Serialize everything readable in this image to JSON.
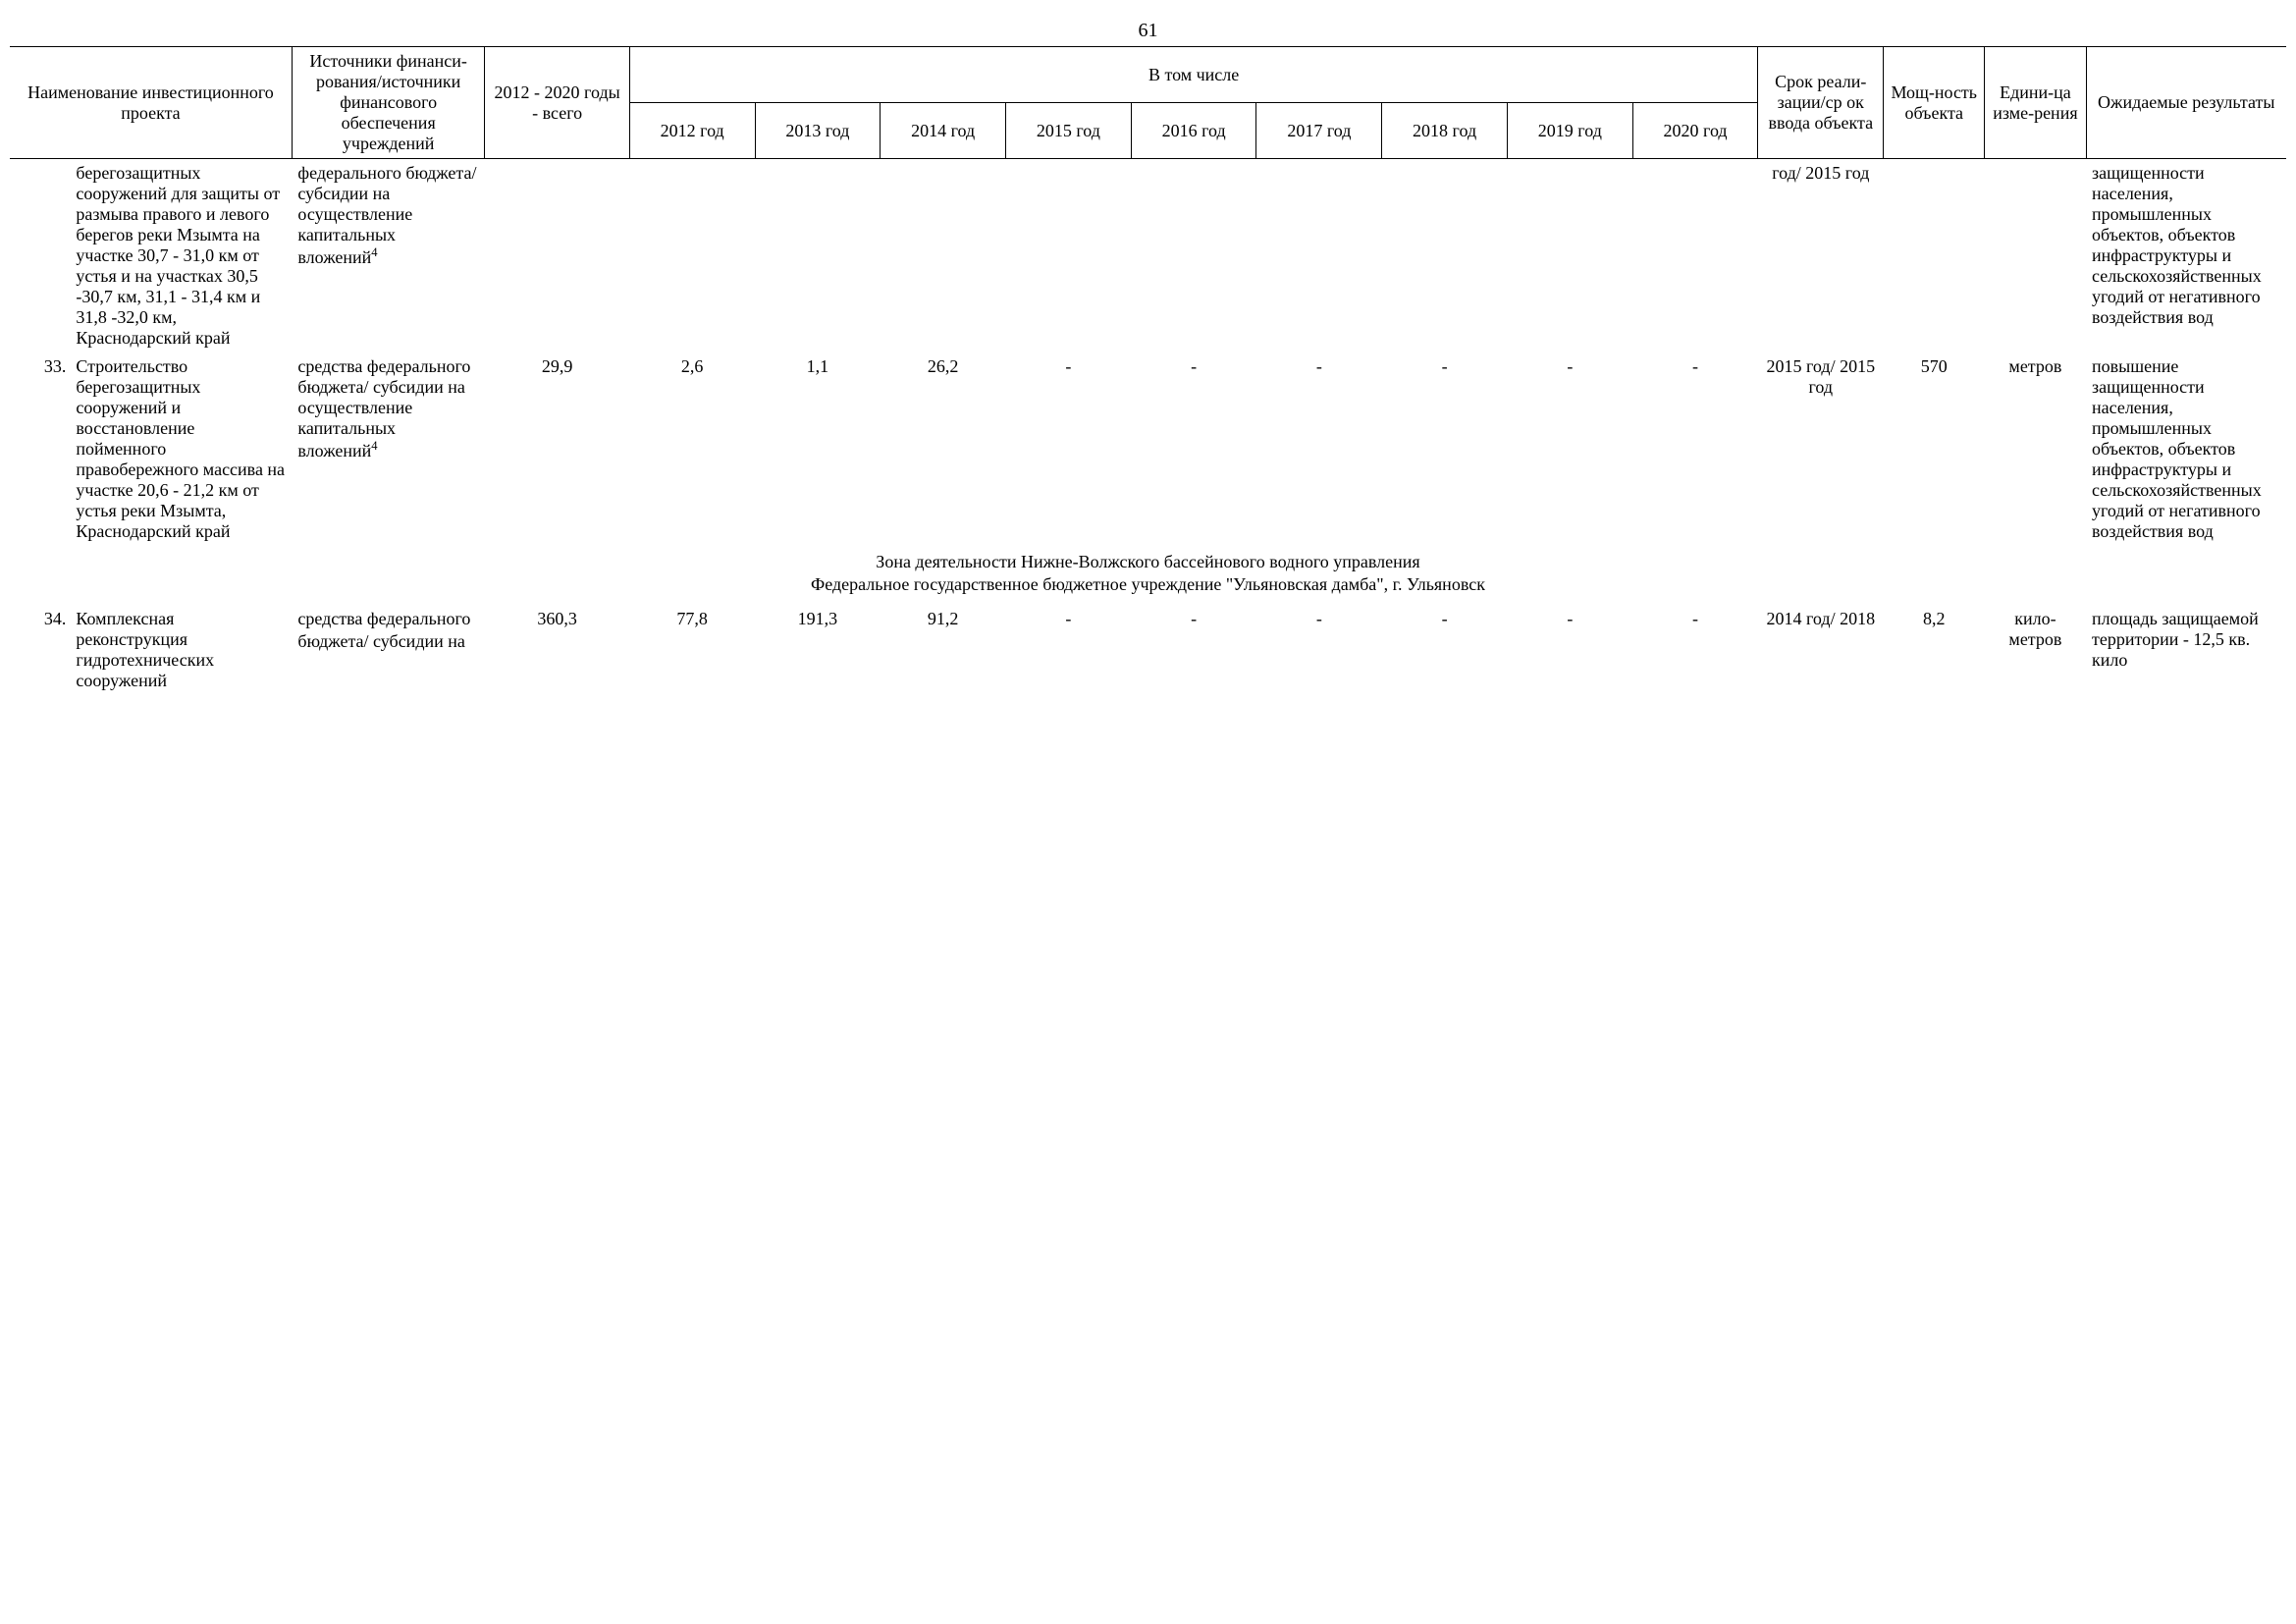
{
  "page_number": "61",
  "header": {
    "name": "Наименование инвестиционного проекта",
    "sources": "Источники финанси-рования/источники финансового обеспечения учреждений",
    "total": "2012 - 2020 годы - всего",
    "including": "В том числе",
    "y2012": "2012 год",
    "y2013": "2013 год",
    "y2014": "2014 год",
    "y2015": "2015 год",
    "y2016": "2016 год",
    "y2017": "2017 год",
    "y2018": "2018 год",
    "y2019": "2019 год",
    "y2020": "2020 год",
    "srok": "Срок реали-зации/ср ок ввода объекта",
    "mosh": "Мощ-ность объекта",
    "unit": "Едини-ца изме-рения",
    "result": "Ожидаемые результаты"
  },
  "rows": {
    "r0": {
      "idx": "",
      "name": "берегозащитных сооружений для защиты от размыва правого и левого берегов реки Мзымта на участке 30,7 - 31,0 км от устья и на участках 30,5 -30,7 км, 31,1 - 31,4 км и 31,8 -32,0 км, Краснодарский край",
      "src_pre": "федерального бюджета/ субсидии на осуществление капитальных вложений",
      "src_sup": "4",
      "total": "",
      "v2012": "",
      "v2013": "",
      "v2014": "",
      "v2015": "",
      "v2016": "",
      "v2017": "",
      "v2018": "",
      "v2019": "",
      "v2020": "",
      "srok": "год/ 2015 год",
      "mosh": "",
      "unit": "",
      "result": "защищенности населения, промышленных объектов, объектов инфраструктуры и сельскохозяйственных угодий от негативного воздействия вод"
    },
    "r33": {
      "idx": "33.",
      "name": "Строительство берегозащитных сооружений и восстановление пойменного правобережного массива на участке 20,6 - 21,2 км от устья реки Мзымта, Краснодарский край",
      "src_pre": "средства федерального бюджета/ субсидии на осуществление капитальных вложений",
      "src_sup": "4",
      "total": "29,9",
      "v2012": "2,6",
      "v2013": "1,1",
      "v2014": "26,2",
      "v2015": "-",
      "v2016": "-",
      "v2017": "-",
      "v2018": "-",
      "v2019": "-",
      "v2020": "-",
      "srok": "2015 год/ 2015 год",
      "mosh": "570",
      "unit": "метров",
      "result": "повышение защищенности населения, промышленных объектов, объектов инфраструктуры и сельскохозяйственных угодий от негативного воздействия вод"
    },
    "section1": "Зона деятельности Нижне-Волжского бассейнового водного управления",
    "section2": "Федеральное государственное бюджетное учреждение \"Ульяновская дамба\", г. Ульяновск",
    "r34": {
      "idx": "34.",
      "name": "Комплексная реконструкция гидротехнических сооружений",
      "src_pre": "средства федерального бюджета/ субсидии на",
      "src_sup": "",
      "total": "360,3",
      "v2012": "77,8",
      "v2013": "191,3",
      "v2014": "91,2",
      "v2015": "-",
      "v2016": "-",
      "v2017": "-",
      "v2018": "-",
      "v2019": "-",
      "v2020": "-",
      "srok": "2014 год/ 2018",
      "mosh": "8,2",
      "unit": "кило-метров",
      "result": "площадь защищаемой территории - 12,5 кв. кило"
    }
  }
}
